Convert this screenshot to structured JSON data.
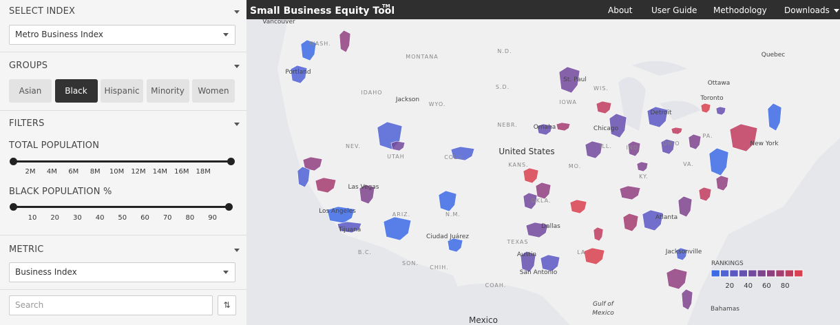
{
  "header": {
    "title": "Small Business Equity Tool",
    "trademark": "TM",
    "nav": [
      "About",
      "User Guide",
      "Methodology",
      "Downloads"
    ]
  },
  "sidebar": {
    "select_index": {
      "label": "SELECT INDEX",
      "value": "Metro Business Index"
    },
    "groups": {
      "label": "GROUPS",
      "options": [
        "Asian",
        "Black",
        "Hispanic",
        "Minority",
        "Women"
      ],
      "selected": "Black"
    },
    "filters": {
      "label": "FILTERS",
      "total_population": {
        "label": "TOTAL POPULATION",
        "ticks": [
          "2M",
          "4M",
          "6M",
          "8M",
          "10M",
          "12M",
          "14M",
          "16M",
          "18M"
        ]
      },
      "black_population": {
        "label": "BLACK POPULATION %",
        "ticks": [
          10,
          20,
          30,
          40,
          50,
          60,
          70,
          80,
          90
        ]
      }
    },
    "metric": {
      "label": "METRIC",
      "value": "Business Index"
    },
    "search": {
      "placeholder": "Search"
    }
  },
  "map": {
    "labels": [
      "Vancouver",
      "WASH.",
      "Portland",
      "MONTANA",
      "N.D.",
      "St. Paul",
      "IDAHO",
      "Jackson",
      "WYO.",
      "S.D.",
      "WIS.",
      "Ottawa",
      "Quebec",
      "Toronto",
      "Chicago",
      "Detroit",
      "IOWA",
      "Omaha",
      "NEBR.",
      "NEV.",
      "UTAH",
      "United States",
      "KANS.",
      "ILL.",
      "IND.",
      "OHIO",
      "PA.",
      "New York",
      "Las Vegas",
      "Los Angeles",
      "Tijuana",
      "ARIZ.",
      "N.M.",
      "OKLA.",
      "Dallas",
      "Atlanta",
      "TEXAS",
      "Ciudad Juárez",
      "Austin",
      "San Antonio",
      "LA.",
      "Jacksonville",
      "Gulf of",
      "Mexico",
      "Bahamas",
      "Mexico",
      "CHIH.",
      "B.C.",
      "SON.",
      "COAH.",
      "VA.",
      "KY.",
      "MO.",
      "COLO."
    ],
    "legend": {
      "title": "RANKINGS",
      "colors": [
        "#3d6be6",
        "#4f62d6",
        "#5b58c4",
        "#6650b0",
        "#72499e",
        "#7f448e",
        "#8f3f80",
        "#a63c70",
        "#bf3c5e",
        "#d8414f"
      ],
      "ticks": [
        20,
        40,
        60,
        80
      ]
    }
  }
}
